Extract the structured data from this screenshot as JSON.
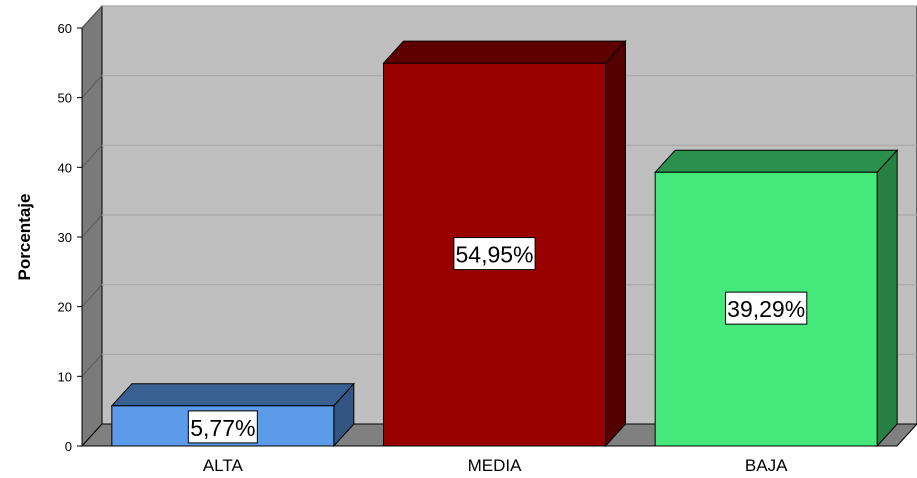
{
  "chart_data": {
    "type": "bar",
    "title": "",
    "xlabel": "",
    "ylabel": "Porcentaje",
    "categories": [
      "ALTA",
      "MEDIA",
      "BAJA"
    ],
    "values": [
      5.77,
      54.95,
      39.29
    ],
    "data_labels": [
      "5,77%",
      "54,95%",
      "39,29%"
    ],
    "bar_colors": [
      "#5b9bea",
      "#990000",
      "#45e87a"
    ],
    "ylim": [
      0,
      60
    ],
    "yticks": [
      0,
      10,
      20,
      30,
      40,
      50,
      60
    ],
    "grid": true,
    "legend": "none",
    "style": "3d",
    "background_color": "#bfbfbf",
    "floor_color": "#808080"
  }
}
